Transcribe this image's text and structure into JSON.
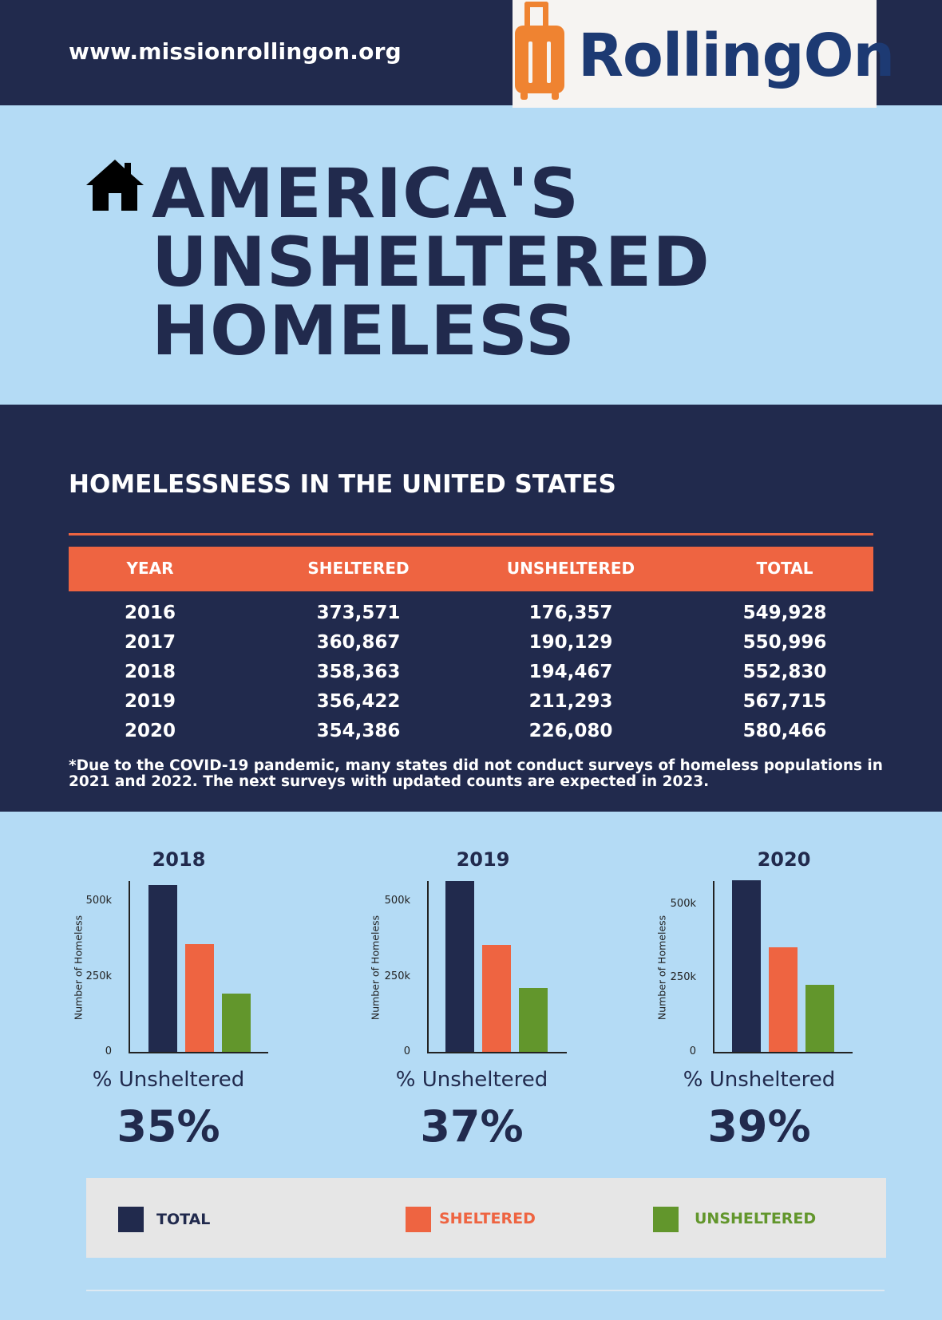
{
  "header": {
    "url": "www.missionrollingon.org",
    "logo_text": "RollingOn",
    "logo_icon": "suitcase-icon"
  },
  "title": {
    "icon": "home-icon",
    "lines": [
      "AMERICA'S",
      "UNSHELTERED",
      "HOMELESS"
    ]
  },
  "table": {
    "title": "HOMELESSNESS IN THE UNITED STATES",
    "headers": [
      "YEAR",
      "SHELTERED",
      "UNSHELTERED",
      "TOTAL"
    ],
    "rows": [
      [
        "2016",
        "373,571",
        "176,357",
        "549,928"
      ],
      [
        "2017",
        "360,867",
        "190,129",
        "550,996"
      ],
      [
        "2018",
        "358,363",
        "194,467",
        "552,830"
      ],
      [
        "2019",
        "356,422",
        "211,293",
        "567,715"
      ],
      [
        "2020",
        "354,386",
        "226,080",
        "580,466"
      ]
    ],
    "note": "*Due to the COVID-19 pandemic, many states did not conduct surveys of homeless populations in 2021 and 2022. The next surveys with updated counts are expected in 2023."
  },
  "chart_data": [
    {
      "type": "bar",
      "title": "2018",
      "ylabel": "Number of Homeless",
      "categories": [
        "TOTAL",
        "SHELTERED",
        "UNSHELTERED"
      ],
      "values": [
        552830,
        358363,
        194467
      ],
      "ylim": [
        0,
        570000
      ],
      "yticks": [
        0,
        250000,
        500000
      ],
      "ytick_labels": [
        "0",
        "250k",
        "500k"
      ],
      "pct_label": "% Unsheltered",
      "pct_value": "35%"
    },
    {
      "type": "bar",
      "title": "2019",
      "ylabel": "Number of Homeless",
      "categories": [
        "TOTAL",
        "SHELTERED",
        "UNSHELTERED"
      ],
      "values": [
        567715,
        356422,
        211293
      ],
      "ylim": [
        0,
        570000
      ],
      "yticks": [
        0,
        250000,
        500000
      ],
      "ytick_labels": [
        "0",
        "250k",
        "500k"
      ],
      "pct_label": "% Unsheltered",
      "pct_value": "37%"
    },
    {
      "type": "bar",
      "title": "2020",
      "ylabel": "Number of Homeless",
      "categories": [
        "TOTAL",
        "SHELTERED",
        "UNSHELTERED"
      ],
      "values": [
        580466,
        354386,
        226080
      ],
      "ylim": [
        0,
        580466
      ],
      "yticks": [
        0,
        250000,
        500000
      ],
      "ytick_labels": [
        "0",
        "250k",
        "500k"
      ],
      "pct_label": "% Unsheltered",
      "pct_value": "39%"
    }
  ],
  "legend": {
    "items": [
      {
        "label": "TOTAL",
        "color": "#212a4d"
      },
      {
        "label": "SHELTERED",
        "color": "#ee6441"
      },
      {
        "label": "UNSHELTERED",
        "color": "#62962c"
      }
    ]
  },
  "colors": {
    "navy": "#212a4d",
    "orange": "#ee6441",
    "green": "#62962c",
    "light_blue": "#b4dbf5",
    "logo_orange": "#ef8331",
    "logo_blue": "#1d3a73"
  }
}
